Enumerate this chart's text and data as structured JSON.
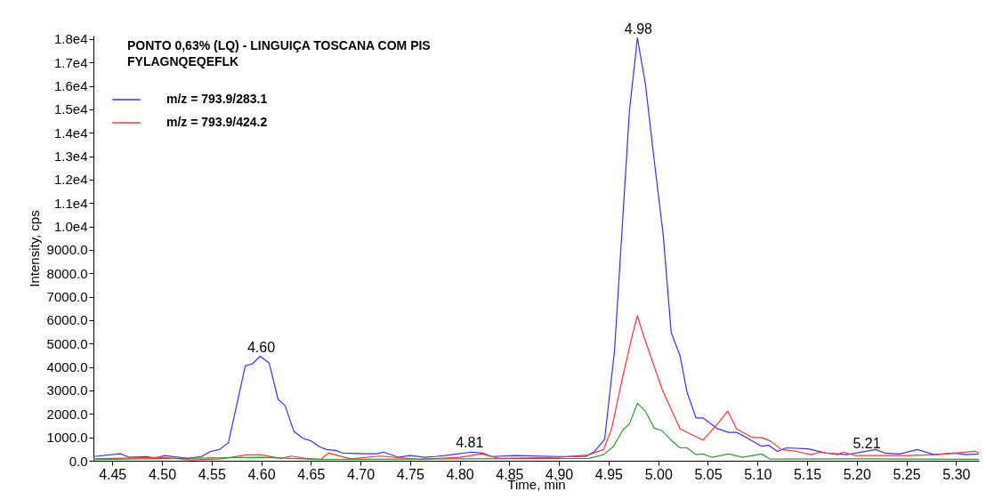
{
  "chart_data": {
    "type": "line",
    "title": "PONTO 0,63% (LQ)   - LINGUIÇA TOSCANA COM PIS",
    "subtitle": "FYLAGNQEQEFLK",
    "xlabel": "Time, min",
    "ylabel": "Intensity, cps",
    "legend": "top left",
    "xlim": [
      4.431,
      5.323
    ],
    "ylim": [
      0,
      18150
    ],
    "xticks": [
      4.45,
      {
        "value": 4.5,
        "label": "4.50"
      },
      4.55,
      {
        "value": 4.6,
        "label": "4.60"
      },
      4.65,
      {
        "value": 4.7,
        "label": "4.70"
      },
      4.75,
      {
        "value": 4.8,
        "label": "4.80"
      },
      4.85,
      {
        "value": 4.9,
        "label": "4.90"
      },
      4.95,
      {
        "value": 5,
        "label": "5.00"
      },
      5.05,
      {
        "value": 5.1,
        "label": "5.10"
      },
      5.15,
      {
        "value": 5.2,
        "label": "5.20"
      },
      5.25,
      {
        "value": 5.3,
        "label": "5.30"
      }
    ],
    "yticks": [
      {
        "value": 0,
        "label": "0.0"
      },
      {
        "value": 1000,
        "label": "1000.0"
      },
      {
        "value": 2000,
        "label": "2000.0"
      },
      {
        "value": 3000,
        "label": "3000.0"
      },
      {
        "value": 4000,
        "label": "4000.0"
      },
      {
        "value": 5000,
        "label": "5000.0"
      },
      {
        "value": 6000,
        "label": "6000.0"
      },
      {
        "value": 7000,
        "label": "7000.0"
      },
      {
        "value": 8000,
        "label": "8000.0"
      },
      {
        "value": 9000,
        "label": "9000.0"
      },
      {
        "value": 10000,
        "label": "1.0e4"
      },
      {
        "value": 11000,
        "label": "1.1e4"
      },
      {
        "value": 12000,
        "label": "1.2e4"
      },
      {
        "value": 13000,
        "label": "1.3e4"
      },
      {
        "value": 14000,
        "label": "1.4e4"
      },
      {
        "value": 15000,
        "label": "1.5e4"
      },
      {
        "value": 16000,
        "label": "1.6e4"
      },
      {
        "value": 17000,
        "label": "1.7e4"
      },
      {
        "value": 18000,
        "label": "1.8e4"
      }
    ],
    "annotations": [
      {
        "text": "4.60",
        "x": 4.6,
        "y": 4460
      },
      {
        "text": "4.81",
        "x": 4.81,
        "y": 370
      },
      {
        "text": "4.98",
        "x": 4.98,
        "y": 18050
      },
      {
        "text": "5.21",
        "x": 5.21,
        "y": 330
      }
    ],
    "series": [
      {
        "name": "m/z = 793.9/283.1",
        "color": "#3333ff",
        "x": [
          4.431,
          4.458,
          4.467,
          4.485,
          4.493,
          4.502,
          4.526,
          4.54,
          4.549,
          4.558,
          4.567,
          4.584,
          4.591,
          4.599,
          4.608,
          4.617,
          4.624,
          4.633,
          4.642,
          4.65,
          4.659,
          4.666,
          4.675,
          4.682,
          4.706,
          4.717,
          4.723,
          4.738,
          4.75,
          4.765,
          4.775,
          4.785,
          4.812,
          4.823,
          4.832,
          4.856,
          4.9,
          4.927,
          4.936,
          4.946,
          4.956,
          4.971,
          4.979,
          4.987,
          4.996,
          5.005,
          5.013,
          5.022,
          5.029,
          5.038,
          5.045,
          5.06,
          5.071,
          5.079,
          5.089,
          5.104,
          5.111,
          5.12,
          5.129,
          5.151,
          5.169,
          5.19,
          5.219,
          5.228,
          5.243,
          5.261,
          5.278,
          5.298,
          5.31,
          5.323
        ],
        "values": [
          180,
          300,
          150,
          180,
          100,
          220,
          100,
          180,
          400,
          480,
          770,
          4060,
          4130,
          4460,
          4170,
          2620,
          2360,
          1250,
          960,
          850,
          590,
          480,
          440,
          330,
          300,
          300,
          370,
          150,
          220,
          150,
          180,
          220,
          370,
          330,
          180,
          220,
          180,
          180,
          400,
          920,
          4720,
          14940,
          18050,
          16100,
          12800,
          9630,
          5490,
          4470,
          2930,
          1830,
          1830,
          1360,
          1210,
          1210,
          990,
          620,
          660,
          400,
          550,
          510,
          330,
          260,
          480,
          330,
          290,
          480,
          260,
          330,
          260,
          290
        ]
      },
      {
        "name": "m/z = 793.9/424.2",
        "color": "#ff3333",
        "x": [
          4.431,
          4.5,
          4.53,
          4.56,
          4.585,
          4.6,
          4.62,
          4.63,
          4.645,
          4.66,
          4.668,
          4.69,
          4.72,
          4.76,
          4.8,
          4.822,
          4.84,
          4.9,
          4.93,
          4.945,
          4.953,
          4.964,
          4.974,
          4.979,
          4.986,
          5.004,
          5.022,
          5.045,
          5.06,
          5.07,
          5.079,
          5.095,
          5.104,
          5.113,
          5.124,
          5.139,
          5.154,
          5.163,
          5.181,
          5.186,
          5.199,
          5.222,
          5.252,
          5.281,
          5.319,
          5.323
        ],
        "values": [
          80,
          150,
          30,
          80,
          250,
          250,
          100,
          200,
          100,
          60,
          330,
          80,
          200,
          50,
          150,
          290,
          100,
          150,
          250,
          480,
          1360,
          3550,
          5380,
          6190,
          5240,
          3040,
          1360,
          880,
          1580,
          2120,
          1360,
          990,
          990,
          840,
          480,
          400,
          260,
          370,
          260,
          370,
          220,
          220,
          220,
          260,
          400,
          350
        ]
      },
      {
        "color": "#339933",
        "x": [
          4.431,
          4.6,
          4.66,
          4.8,
          4.93,
          4.945,
          4.955,
          4.964,
          4.971,
          4.979,
          4.987,
          4.996,
          5.004,
          5.013,
          5.022,
          5.029,
          5.038,
          5.045,
          5.054,
          5.071,
          5.085,
          5.104,
          5.113,
          5.2,
          5.323
        ],
        "values": [
          50,
          150,
          50,
          80,
          100,
          260,
          620,
          1280,
          1580,
          2450,
          2120,
          1390,
          1280,
          880,
          550,
          550,
          260,
          290,
          150,
          290,
          150,
          290,
          70,
          80,
          60
        ]
      }
    ]
  }
}
